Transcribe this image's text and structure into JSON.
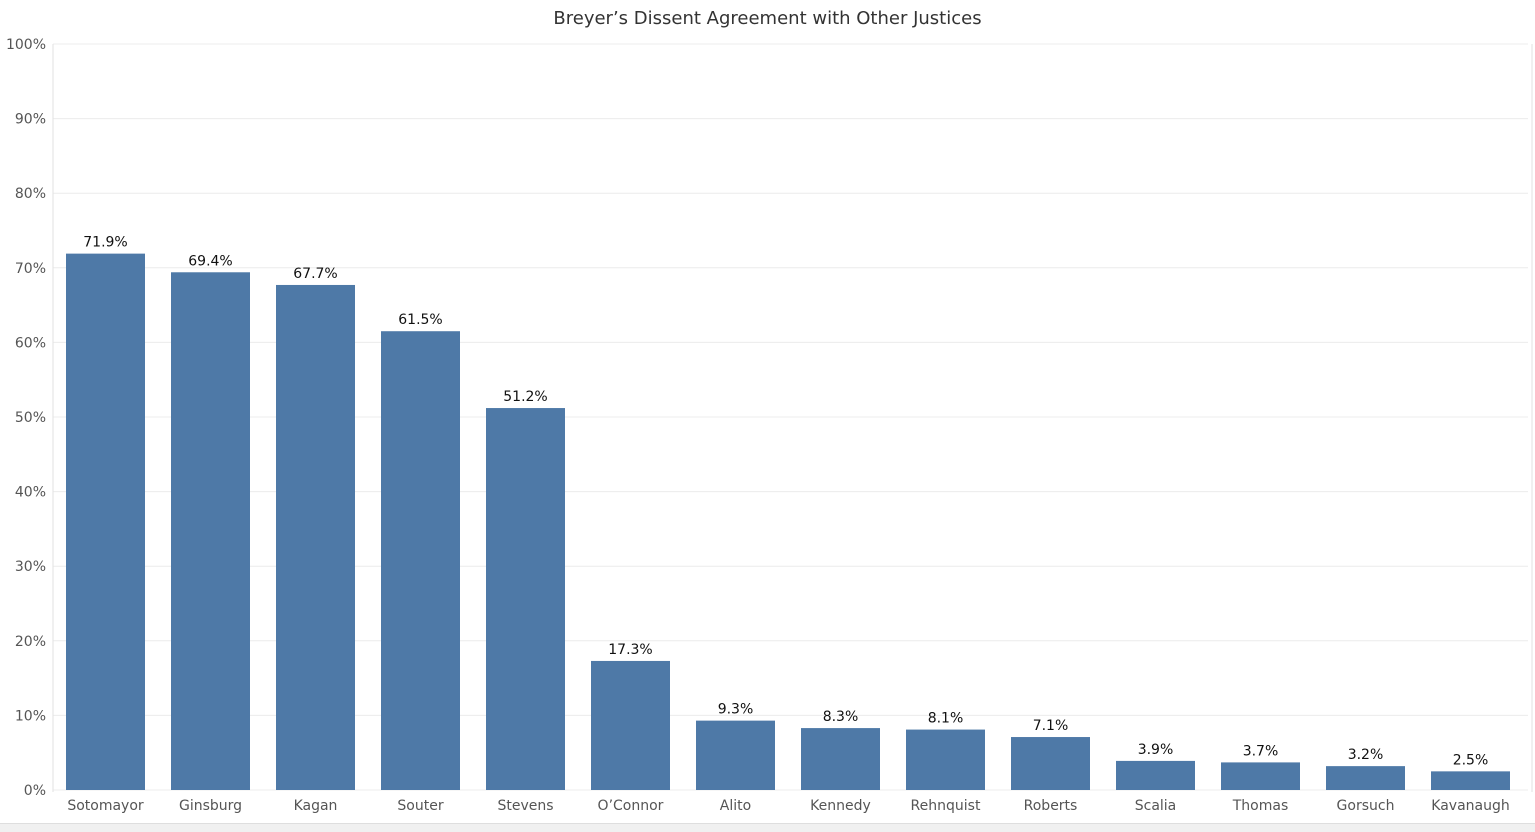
{
  "chart_data": {
    "type": "bar",
    "title": "Breyer’s Dissent Agreement with Other Justices",
    "xlabel": "",
    "ylabel": "",
    "ylim": [
      0,
      100
    ],
    "yticks": [
      "0%",
      "10%",
      "20%",
      "30%",
      "40%",
      "50%",
      "60%",
      "70%",
      "80%",
      "90%",
      "100%"
    ],
    "grid": true,
    "legend": "none",
    "categories": [
      "Sotomayor",
      "Ginsburg",
      "Kagan",
      "Souter",
      "Stevens",
      "O’Connor",
      "Alito",
      "Kennedy",
      "Rehnquist",
      "Roberts",
      "Scalia",
      "Thomas",
      "Gorsuch",
      "Kavanaugh"
    ],
    "values": [
      71.9,
      69.4,
      67.7,
      61.5,
      51.2,
      17.3,
      9.3,
      8.3,
      8.1,
      7.1,
      3.9,
      3.7,
      3.2,
      2.5
    ],
    "data_labels": [
      "71.9%",
      "69.4%",
      "67.7%",
      "61.5%",
      "51.2%",
      "17.3%",
      "9.3%",
      "8.3%",
      "8.1%",
      "7.1%",
      "3.9%",
      "3.7%",
      "3.2%",
      "2.5%"
    ],
    "colors": {
      "bar": "#4e79a7",
      "grid": "#ececec",
      "axis_text": "#555555",
      "label_text": "#111111"
    }
  }
}
